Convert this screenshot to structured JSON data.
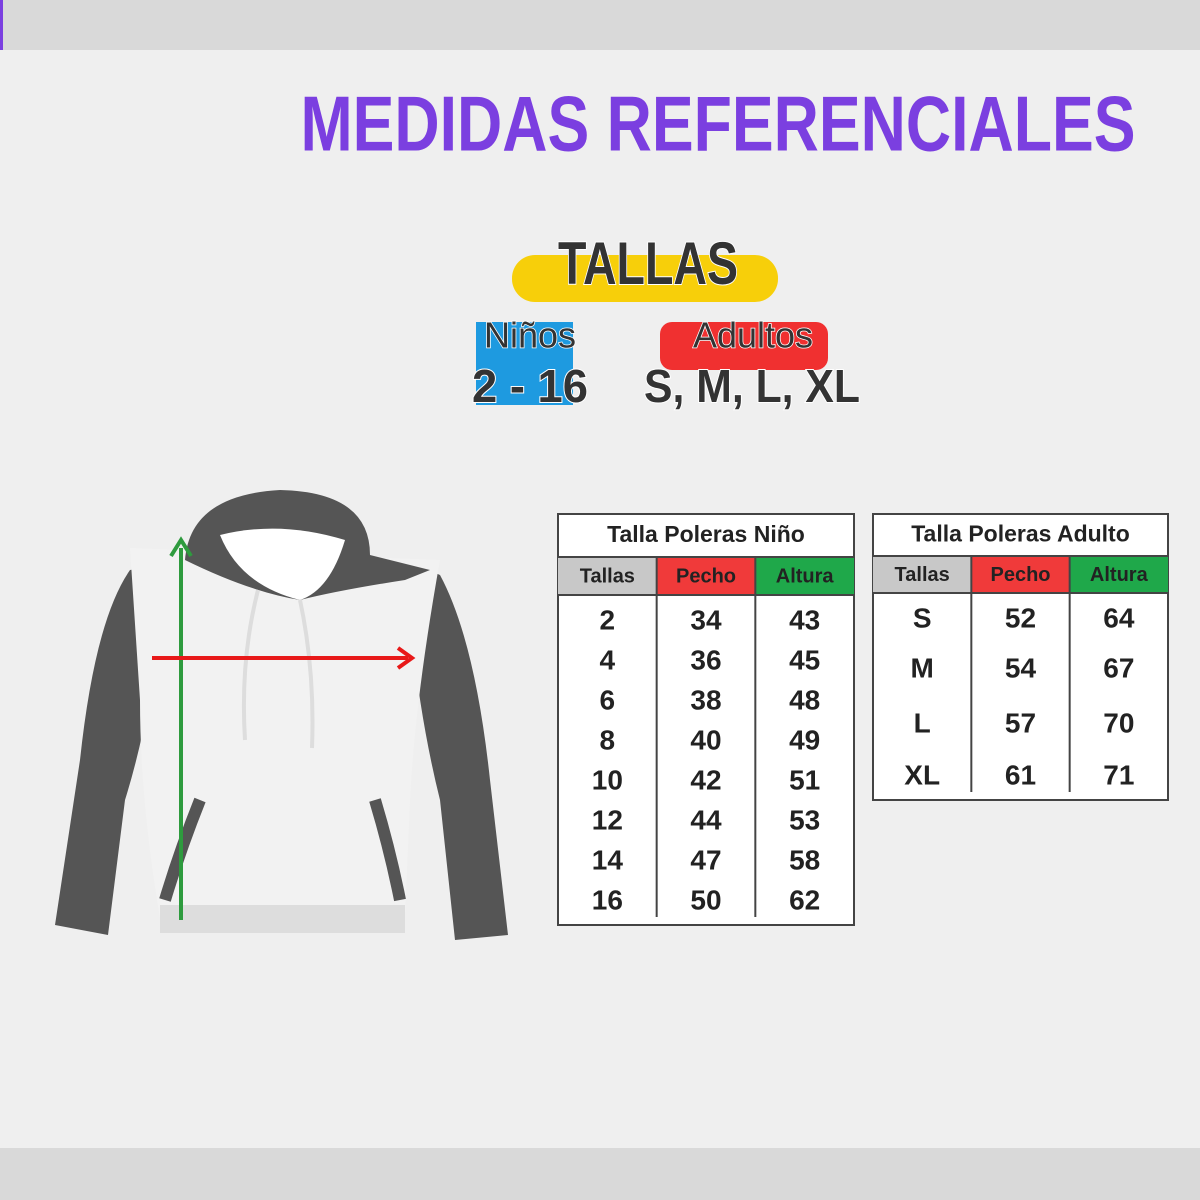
{
  "title": "MEDIDAS REFERENCIALES",
  "sizes": {
    "label": "TALLAS",
    "kids": {
      "label": "Niños",
      "range": "2 - 16"
    },
    "adults": {
      "label": "Adultos",
      "range": "S, M, L, XL"
    }
  },
  "tables": [
    {
      "title": "Talla Poleras Niño",
      "headers": [
        "Tallas",
        "Pecho",
        "Altura"
      ],
      "rows": [
        [
          2,
          34,
          43
        ],
        [
          4,
          36,
          45
        ],
        [
          6,
          38,
          48
        ],
        [
          8,
          40,
          49
        ],
        [
          10,
          42,
          51
        ],
        [
          12,
          44,
          53
        ],
        [
          14,
          47,
          58
        ],
        [
          16,
          50,
          62
        ]
      ]
    },
    {
      "title": "Talla Poleras Adulto",
      "headers": [
        "Tallas",
        "Pecho",
        "Altura"
      ],
      "rows": [
        [
          "S",
          52,
          64
        ],
        [
          "M",
          54,
          67
        ],
        [
          "L",
          57,
          70
        ],
        [
          "XL",
          61,
          71
        ]
      ]
    }
  ]
}
